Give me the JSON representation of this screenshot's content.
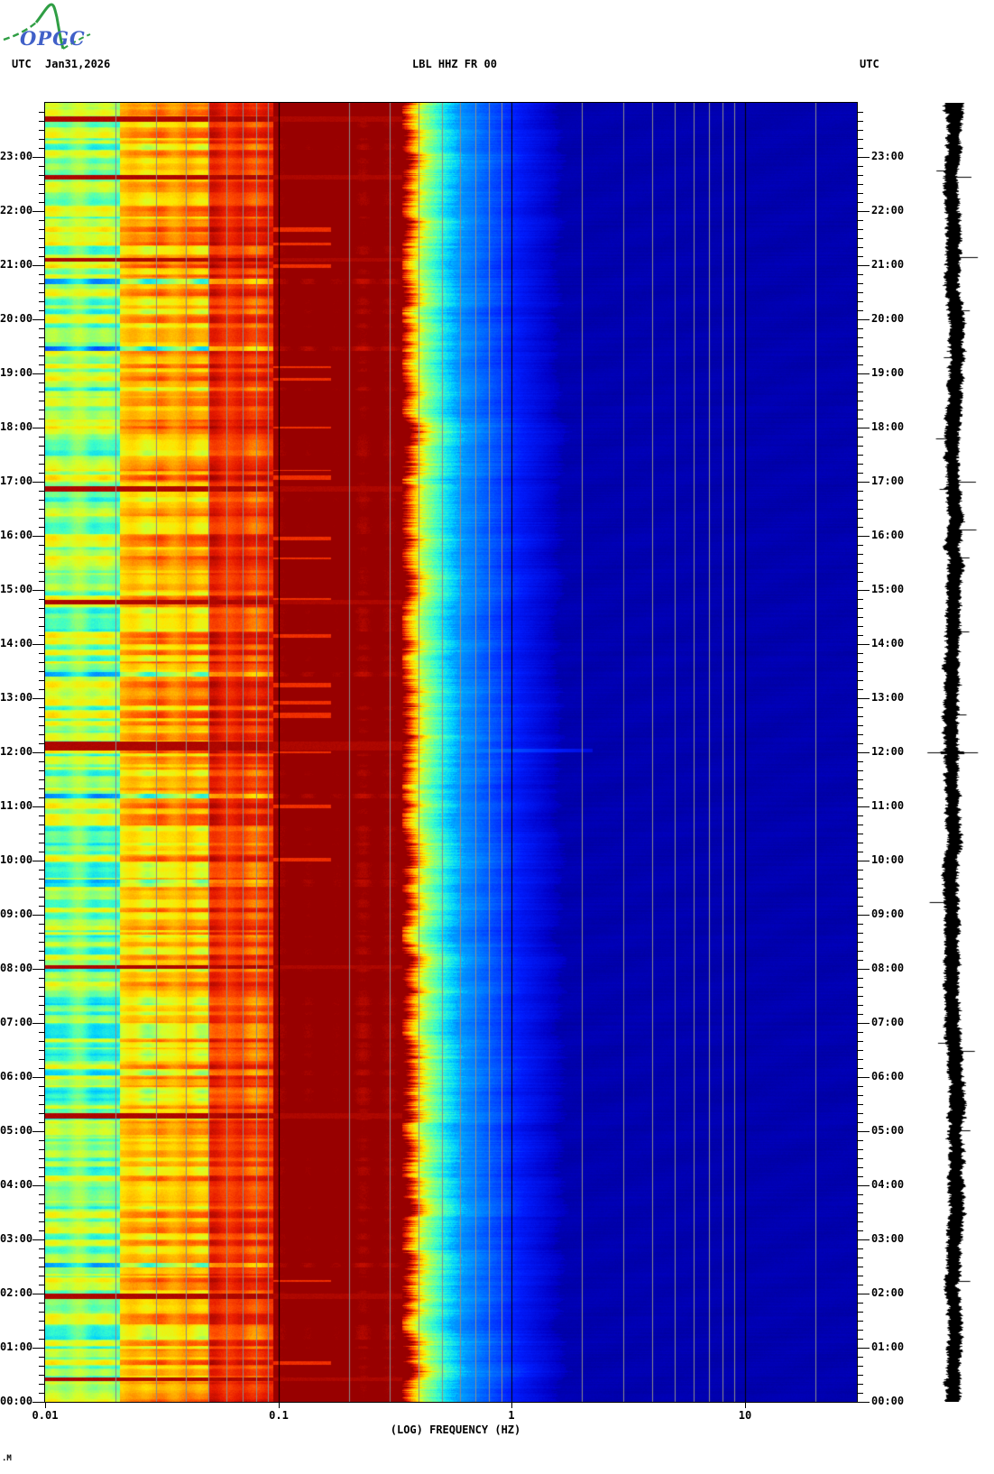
{
  "header": {
    "utc_left": "UTC",
    "date": "Jan31,2026",
    "title": "LBL HHZ FR 00",
    "utc_right": "UTC"
  },
  "logo": {
    "acronym": "OPGC",
    "curve_color": "#2f9e44",
    "text_color": "#4060c8"
  },
  "footer": {
    "corner_mark": ".M"
  },
  "chart_data": {
    "type": "heatmap",
    "subtype": "24h seismic spectrogram; time vertical (00:00 bottom to 24:00 top), log frequency horizontal; black seismogram trace in right margin",
    "title": "LBL HHZ FR 00",
    "date": "Jan31,2026",
    "timezone": "UTC",
    "xlabel": "(LOG) FREQUENCY (HZ)",
    "x_scale": "log",
    "x_range_hz": [
      0.01,
      30
    ],
    "x_ticks": [
      {
        "hz": 0.01,
        "label": "0.01"
      },
      {
        "hz": 0.1,
        "label": "0.1"
      },
      {
        "hz": 1,
        "label": "1"
      },
      {
        "hz": 10,
        "label": "10"
      }
    ],
    "time_span_hours": 24,
    "y_hour_labels": [
      "23:00",
      "22:00",
      "21:00",
      "20:00",
      "19:00",
      "18:00",
      "17:00",
      "16:00",
      "15:00",
      "14:00",
      "13:00",
      "12:00",
      "11:00",
      "10:00",
      "09:00",
      "08:00",
      "07:00",
      "06:00",
      "05:00",
      "04:00",
      "03:00",
      "02:00",
      "01:00",
      "00:00"
    ],
    "y_minor_tick_minutes": 10,
    "grid": {
      "minor_color": "#8c8c8c",
      "decade_color": "#000000"
    },
    "colormap": {
      "name": "jet",
      "low": "#0000a2",
      "high": "#980000"
    },
    "frequency_bands": [
      {
        "hz": [
          0.01,
          0.021
        ],
        "level": 0.51,
        "stripe_amp": 0.17,
        "appearance": "cyan/green/yellow horizontal striping"
      },
      {
        "hz": [
          0.021,
          0.05
        ],
        "level": 0.7,
        "stripe_amp": 0.2,
        "appearance": "yellow/orange/red horizontal striping"
      },
      {
        "hz": [
          0.05,
          0.095
        ],
        "level": 0.86,
        "stripe_amp": 0.13,
        "appearance": "orange to dark-red striping"
      },
      {
        "hz": [
          0.095,
          0.34
        ],
        "level": 1.0,
        "stripe_amp": 0.04,
        "appearance": "saturated dark-red microseism band"
      },
      {
        "hz": [
          0.34,
          0.7
        ],
        "level": 0.5,
        "stripe_amp": 0.0,
        "appearance": "jagged red-yellow-cyan falloff edge"
      },
      {
        "hz": [
          0.7,
          30
        ],
        "level": 0.05,
        "stripe_amp": 0.0,
        "appearance": "deep blue low-energy background"
      }
    ],
    "high_energy_bands_utc": [
      {
        "time": "23:42",
        "rows": 6,
        "strength": 1.5
      },
      {
        "time": "22:38",
        "rows": 5,
        "strength": 1.35
      },
      {
        "time": "21:06",
        "rows": 4,
        "strength": 1.3
      },
      {
        "time": "16:52",
        "rows": 6,
        "strength": 1.45
      },
      {
        "time": "14:47",
        "rows": 5,
        "strength": 1.35
      },
      {
        "time": "12:07",
        "rows": 10,
        "strength": 1.6
      },
      {
        "time": "08:02",
        "rows": 4,
        "strength": 1.3
      },
      {
        "time": "05:17",
        "rows": 6,
        "strength": 1.35
      },
      {
        "time": "01:57",
        "rows": 6,
        "strength": 1.45
      },
      {
        "time": "00:25",
        "rows": 4,
        "strength": 1.3
      }
    ],
    "low_energy_bands_utc": [
      {
        "time": "20:42",
        "rows": 6,
        "strength": -1.1
      },
      {
        "time": "19:28",
        "rows": 5,
        "strength": -1.3
      },
      {
        "time": "13:27",
        "rows": 5,
        "strength": -1.0
      },
      {
        "time": "11:12",
        "rows": 5,
        "strength": -1.1
      },
      {
        "time": "09:37",
        "rows": 4,
        "strength": -0.9
      },
      {
        "time": "02:32",
        "rows": 5,
        "strength": -1.0
      }
    ],
    "broadband_event": {
      "time": "12:01",
      "hz": [
        0.45,
        2.2
      ],
      "appearance": "cyan streak extending into blue zone"
    },
    "seismogram": {
      "color": "#000000",
      "center_x": 1057,
      "spikes": [
        {
          "time": "12:00",
          "half_width": 28,
          "rows": 3,
          "side": "both"
        },
        {
          "time": "05:15",
          "half_width": 13,
          "rows": 6,
          "side": "both"
        },
        {
          "time": "19:25",
          "half_width": 11,
          "rows": 5,
          "side": "both"
        },
        {
          "time": "03:10",
          "half_width": 17,
          "rows": 2,
          "side": "left"
        },
        {
          "time": "02:20",
          "half_width": 14,
          "rows": 2,
          "side": "left"
        },
        {
          "time": "21:30",
          "half_width": 12,
          "rows": 2,
          "side": "right"
        }
      ]
    }
  }
}
